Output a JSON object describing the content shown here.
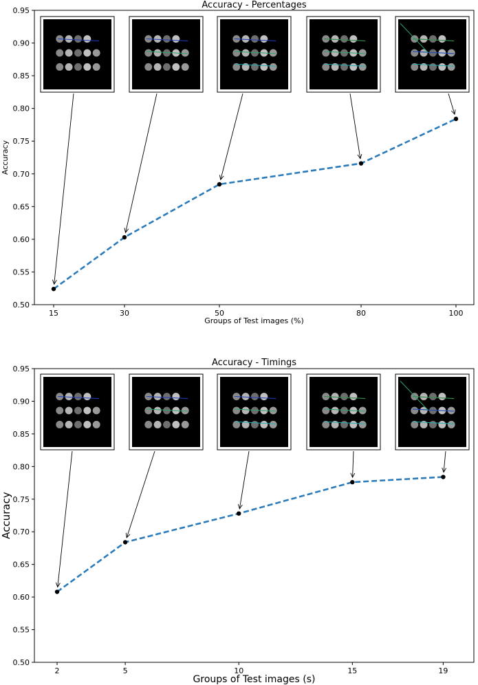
{
  "chart_data": [
    {
      "type": "line",
      "title": "Accuracy - Percentages",
      "xlabel": "Groups of Test images (%)",
      "ylabel": "Accuracy",
      "x_categories": [
        "15",
        "30",
        "50",
        "80",
        "100"
      ],
      "x": [
        15,
        30,
        50,
        80,
        100
      ],
      "values": [
        0.524,
        0.603,
        0.684,
        0.716,
        0.784
      ],
      "ylim": [
        0.5,
        0.95
      ],
      "yticks": [
        "0.50",
        "0.55",
        "0.60",
        "0.65",
        "0.70",
        "0.75",
        "0.80",
        "0.85",
        "0.90",
        "0.95"
      ],
      "grid": false,
      "line_style": "dashed",
      "line_color": "#2b7bba",
      "marker_color": "#000000",
      "inset_images": 5
    },
    {
      "type": "line",
      "title": "Accuracy - Timings",
      "xlabel": "Groups of Test images (s)",
      "ylabel": "Accuracy",
      "x_categories": [
        "2",
        "5",
        "10",
        "15",
        "19"
      ],
      "x": [
        2,
        5,
        10,
        15,
        19
      ],
      "values": [
        0.608,
        0.684,
        0.728,
        0.776,
        0.784
      ],
      "ylim": [
        0.5,
        0.95
      ],
      "yticks": [
        "0.50",
        "0.55",
        "0.60",
        "0.65",
        "0.70",
        "0.75",
        "0.80",
        "0.85",
        "0.90",
        "0.95"
      ],
      "grid": false,
      "line_style": "dashed",
      "line_color": "#2b7bba",
      "marker_color": "#000000",
      "inset_images": 5
    }
  ]
}
